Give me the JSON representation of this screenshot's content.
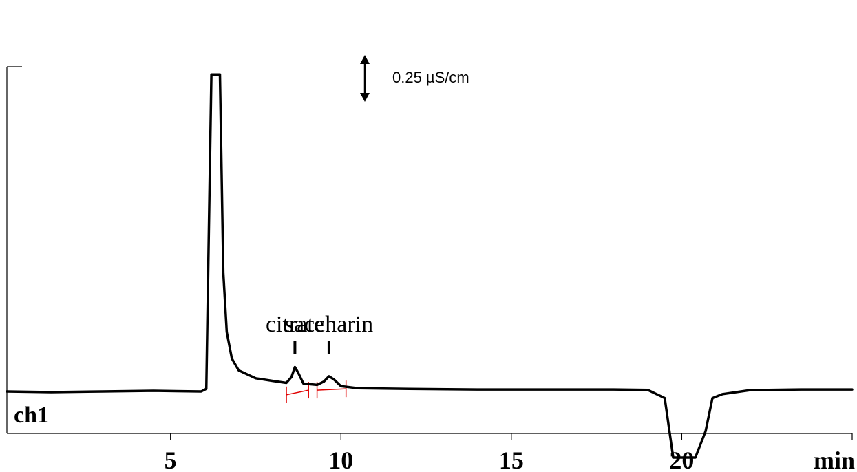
{
  "chart_data": {
    "type": "line",
    "xlabel": "min",
    "ylabel": "",
    "xlim": [
      0.2,
      25
    ],
    "ylim": [
      -0.5,
      2.0
    ],
    "x_ticks": [
      5,
      10,
      15,
      20
    ],
    "x_tick_labels": [
      "5",
      "10",
      "15",
      "20"
    ],
    "grid": false,
    "legend": "none",
    "trace_color": "#000000",
    "baseline_color": "#e00000",
    "channel_label": "ch1",
    "scale_bar": {
      "value": 0.25,
      "label": "0.25 µS/cm"
    },
    "series": [
      {
        "values_description_only": false,
        "points": [
          [
            0.2,
            0.0
          ],
          [
            1.5,
            -0.005
          ],
          [
            3.0,
            0.0
          ],
          [
            4.5,
            0.005
          ],
          [
            5.9,
            0.0
          ],
          [
            6.05,
            0.02
          ],
          [
            6.2,
            2.4
          ],
          [
            6.45,
            2.4
          ],
          [
            6.55,
            0.9
          ],
          [
            6.65,
            0.45
          ],
          [
            6.8,
            0.25
          ],
          [
            7.0,
            0.16
          ],
          [
            7.5,
            0.1
          ],
          [
            8.0,
            0.08
          ],
          [
            8.4,
            0.065
          ],
          [
            8.55,
            0.11
          ],
          [
            8.65,
            0.185
          ],
          [
            8.75,
            0.14
          ],
          [
            8.9,
            0.06
          ],
          [
            9.3,
            0.05
          ],
          [
            9.5,
            0.075
          ],
          [
            9.65,
            0.115
          ],
          [
            9.8,
            0.09
          ],
          [
            10.0,
            0.04
          ],
          [
            10.5,
            0.025
          ],
          [
            12.0,
            0.02
          ],
          [
            14.0,
            0.015
          ],
          [
            16.0,
            0.015
          ],
          [
            18.0,
            0.015
          ],
          [
            19.0,
            0.012
          ],
          [
            19.5,
            -0.05
          ],
          [
            19.75,
            -0.5
          ],
          [
            20.4,
            -0.5
          ],
          [
            20.7,
            -0.3
          ],
          [
            20.9,
            -0.05
          ],
          [
            21.2,
            -0.02
          ],
          [
            22.0,
            0.01
          ],
          [
            23.5,
            0.015
          ],
          [
            25.0,
            0.015
          ]
        ]
      }
    ],
    "peaks": [
      {
        "name": "citrate",
        "x": 8.65,
        "baseline_start": 8.4,
        "baseline_end": 9.05,
        "y_start": 0.0,
        "y_end": 0.035
      },
      {
        "name": "saccharin",
        "x": 9.65,
        "baseline_start": 9.3,
        "baseline_end": 10.15,
        "y_start": 0.035,
        "y_end": 0.045
      }
    ]
  }
}
